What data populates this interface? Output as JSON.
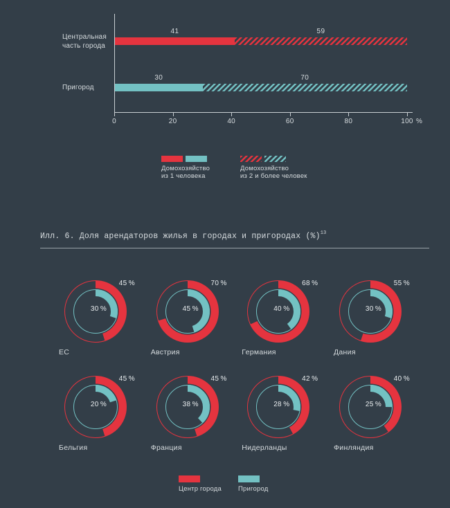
{
  "colors": {
    "background": "#333e48",
    "red": "#e5343f",
    "teal": "#73c1c3",
    "text_light": "#e8ecee",
    "text_mid": "#d7dcdf",
    "axis_line": "#c9cfd3",
    "divider": "#98a1a7"
  },
  "bar_legend": [
    {
      "swatches": [
        "red-solid",
        "teal-solid"
      ],
      "lines": [
        "Домохозяйство",
        "из 1 человека"
      ]
    },
    {
      "swatches": [
        "red-hatched",
        "teal-hatched"
      ],
      "lines": [
        "Домохозяйство",
        "из 2 и более человек"
      ]
    }
  ],
  "donut_legend": [
    {
      "swatch": "red-solid",
      "label": "Центр города"
    },
    {
      "swatch": "teal-solid",
      "label": "Пригород"
    }
  ],
  "chart_data": [
    {
      "type": "bar",
      "orientation": "horizontal",
      "stacked": true,
      "categories": [
        "Центральная часть города",
        "Пригород"
      ],
      "category_label_lines": [
        [
          "Центральная",
          "часть города"
        ],
        [
          "Пригород"
        ]
      ],
      "series": [
        {
          "name": "Домохозяйство из 1 человека",
          "pattern": "solid",
          "values": [
            41,
            30
          ]
        },
        {
          "name": "Домохозяйство из 2 и более человек",
          "pattern": "hatched",
          "values": [
            59,
            70
          ]
        }
      ],
      "bar_colors": [
        "#e5343f",
        "#73c1c3"
      ],
      "xlim": [
        0,
        100
      ],
      "x_ticks": [
        0,
        20,
        40,
        60,
        80,
        100
      ],
      "x_unit": "%",
      "grid": false,
      "value_labels": true
    },
    {
      "type": "pie",
      "variant": "concentric-donut-multiples",
      "title": "Илл. 6. Доля арендаторов жилья в городах и пригородах (%)",
      "title_superscript": "13",
      "unit": "%",
      "categories": [
        "ЕС",
        "Австрия",
        "Германия",
        "Дания",
        "Бельгия",
        "Франция",
        "Нидерланды",
        "Финляндия"
      ],
      "series": [
        {
          "name": "Центр города",
          "ring": "outer",
          "color": "#e5343f",
          "values": [
            45,
            70,
            68,
            55,
            45,
            45,
            42,
            40
          ]
        },
        {
          "name": "Пригород",
          "ring": "inner",
          "color": "#73c1c3",
          "values": [
            30,
            45,
            40,
            30,
            20,
            38,
            28,
            25
          ]
        }
      ],
      "legend_position": "bottom"
    }
  ]
}
